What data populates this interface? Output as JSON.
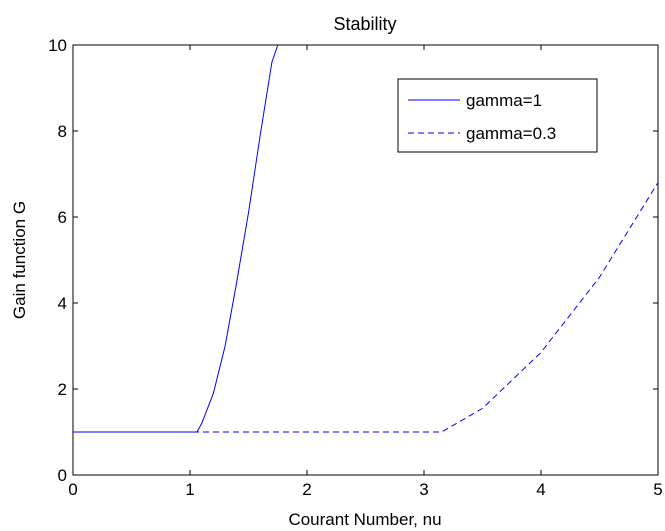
{
  "chart_data": {
    "type": "line",
    "title": "Stability",
    "xlabel": "Courant Number, nu",
    "ylabel": "Gain function G",
    "xlim": [
      0,
      5
    ],
    "ylim": [
      0,
      10
    ],
    "xticks": [
      "0",
      "1",
      "2",
      "3",
      "4",
      "5"
    ],
    "yticks": [
      "0",
      "2",
      "4",
      "6",
      "8",
      "10"
    ],
    "grid": false,
    "legend_position": "top-right",
    "series": [
      {
        "name": "gamma=1",
        "style": "solid",
        "color": "#0000ff",
        "x": [
          0,
          0.5,
          1.0,
          1.06,
          1.1,
          1.2,
          1.3,
          1.4,
          1.5,
          1.6,
          1.7,
          1.75
        ],
        "y": [
          1,
          1,
          1,
          1,
          1.2,
          1.9,
          3.0,
          4.5,
          6.1,
          7.9,
          9.6,
          10
        ]
      },
      {
        "name": "gamma=0.3",
        "style": "dashed",
        "color": "#0000ff",
        "x": [
          0,
          1,
          2,
          3,
          3.15,
          3.5,
          4.0,
          4.5,
          5.0
        ],
        "y": [
          1,
          1,
          1,
          1,
          1,
          1.55,
          2.85,
          4.6,
          6.8
        ]
      }
    ]
  }
}
